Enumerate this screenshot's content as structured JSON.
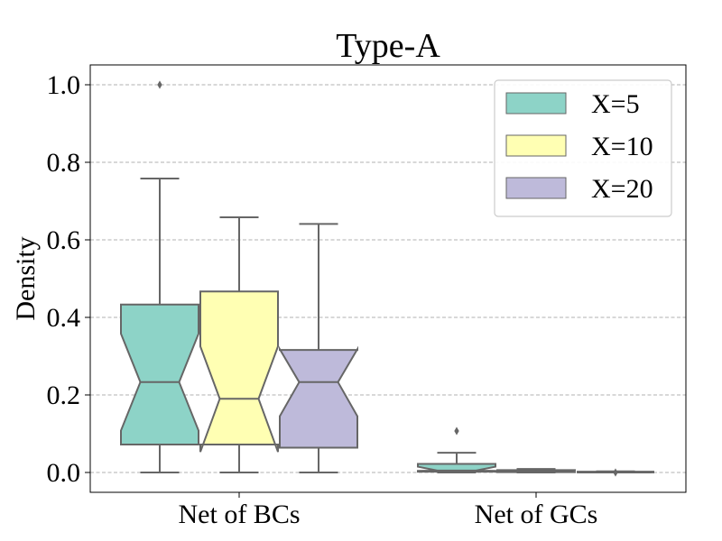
{
  "chart_data": {
    "type": "boxplot",
    "title": "Type-A",
    "xlabel": "",
    "ylabel": "Density",
    "ylim": [
      -0.05,
      1.05
    ],
    "yticks": [
      0.0,
      0.2,
      0.4,
      0.6,
      0.8,
      1.0
    ],
    "ytick_labels": [
      "0.0",
      "0.2",
      "0.4",
      "0.6",
      "0.8",
      "1.0"
    ],
    "grid": "horizontal-dashed",
    "legend_position": "top-right",
    "categories": [
      "Net of BCs",
      "Net of GCs"
    ],
    "series": [
      {
        "name": "X=5",
        "color": "#8dd3c7",
        "boxes": [
          {
            "whisker_low": 0.0,
            "q1": 0.072,
            "median": 0.233,
            "q3": 0.433,
            "whisker_high": 0.758,
            "notch_low": 0.108,
            "notch_high": 0.358,
            "outliers": [
              1.0
            ]
          },
          {
            "whisker_low": 0.0,
            "q1": 0.002,
            "median": 0.005,
            "q3": 0.022,
            "whisker_high": 0.051,
            "notch_low": 0.004,
            "notch_high": 0.015,
            "outliers": [
              0.107
            ]
          }
        ]
      },
      {
        "name": "X=10",
        "color": "#ffffb3",
        "boxes": [
          {
            "whisker_low": 0.0,
            "q1": 0.072,
            "median": 0.19,
            "q3": 0.467,
            "whisker_high": 0.658,
            "notch_low": 0.053,
            "notch_high": 0.325,
            "outliers": []
          },
          {
            "whisker_low": 0.0,
            "q1": 0.001,
            "median": 0.003,
            "q3": 0.006,
            "whisker_high": 0.009,
            "notch_low": 0.002,
            "notch_high": 0.005,
            "outliers": []
          }
        ]
      },
      {
        "name": "X=20",
        "color": "#bebada",
        "boxes": [
          {
            "whisker_low": 0.0,
            "q1": 0.064,
            "median": 0.233,
            "q3": 0.316,
            "whisker_high": 0.641,
            "notch_low": 0.145,
            "notch_high": 0.318,
            "outliers": []
          },
          {
            "whisker_low": 0.0,
            "q1": 0.0,
            "median": 0.001,
            "q3": 0.002,
            "whisker_high": 0.003,
            "notch_low": 0.0,
            "notch_high": 0.002,
            "outliers": [
              0.0
            ]
          }
        ]
      }
    ]
  },
  "colors": {
    "box_edge": "#666666",
    "grid": "#b0b0b0",
    "legend_edge": "#cccccc"
  }
}
